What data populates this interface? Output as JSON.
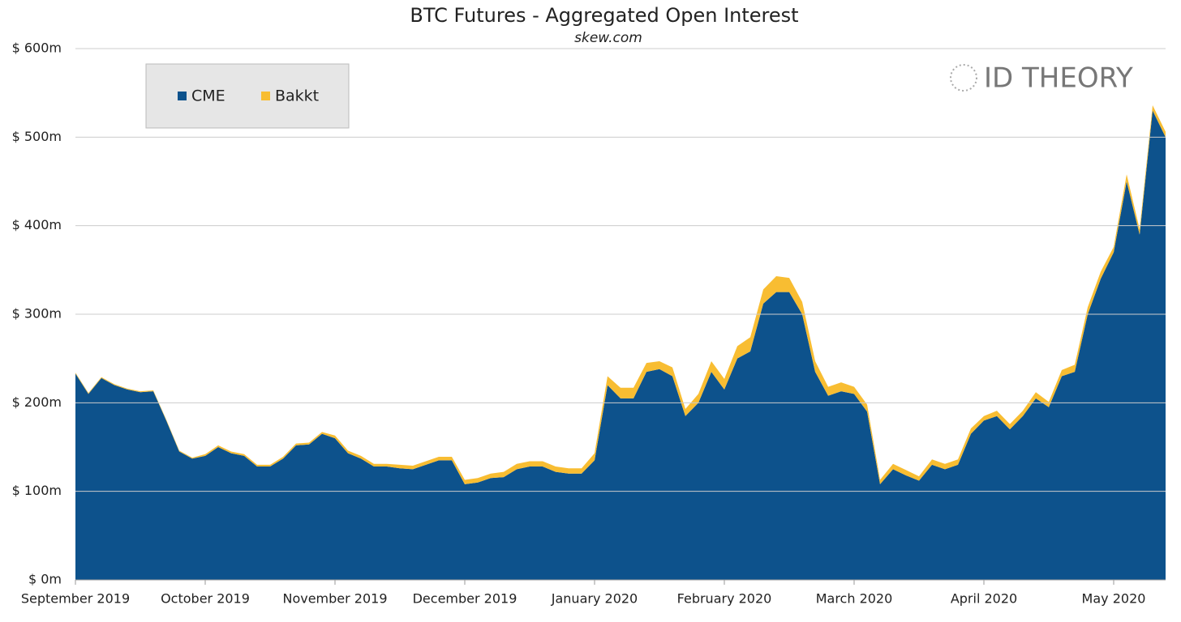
{
  "chart_data": {
    "type": "stacked-area",
    "title": "BTC Futures -  Aggregated Open Interest",
    "subtitle": "skew.com",
    "watermark": "ID THEORY",
    "categories": [
      "September 2019",
      null,
      null,
      null,
      null,
      null,
      null,
      null,
      null,
      null,
      "October 2019",
      null,
      null,
      null,
      null,
      null,
      null,
      null,
      null,
      null,
      "November 2019",
      null,
      null,
      null,
      null,
      null,
      null,
      null,
      null,
      null,
      "December 2019",
      null,
      null,
      null,
      null,
      null,
      null,
      null,
      null,
      null,
      "January 2020",
      null,
      null,
      null,
      null,
      null,
      null,
      null,
      null,
      null,
      "February 2020",
      null,
      null,
      null,
      null,
      null,
      null,
      null,
      null,
      null,
      "March 2020",
      null,
      null,
      null,
      null,
      null,
      null,
      null,
      null,
      null,
      "April 2020",
      null,
      null,
      null,
      null,
      null,
      null,
      null,
      null,
      null,
      "May 2020",
      null,
      null,
      null,
      null
    ],
    "series": [
      {
        "name": "CME",
        "color": "#0d528c",
        "values": [
          233,
          210,
          228,
          220,
          215,
          212,
          213,
          180,
          145,
          137,
          140,
          150,
          143,
          140,
          128,
          128,
          137,
          152,
          153,
          165,
          160,
          143,
          137,
          128,
          128,
          126,
          125,
          130,
          135,
          135,
          108,
          110,
          115,
          116,
          125,
          128,
          128,
          122,
          120,
          120,
          135,
          220,
          205,
          205,
          235,
          238,
          230,
          185,
          200,
          235,
          215,
          250,
          258,
          312,
          325,
          325,
          300,
          235,
          208,
          213,
          210,
          190,
          108,
          125,
          118,
          112,
          130,
          125,
          130,
          165,
          180,
          185,
          170,
          185,
          205,
          195,
          230,
          235,
          300,
          340,
          370,
          450,
          390,
          530,
          500
        ]
      },
      {
        "name": "Bakkt",
        "color": "#f8bd32",
        "values": [
          1,
          1,
          1,
          1,
          1,
          1,
          1,
          1,
          1,
          1,
          2,
          2,
          2,
          2,
          2,
          2,
          2,
          2,
          2,
          2,
          3,
          3,
          3,
          3,
          3,
          4,
          4,
          4,
          4,
          4,
          5,
          5,
          5,
          6,
          6,
          6,
          6,
          6,
          6,
          6,
          8,
          10,
          12,
          12,
          10,
          9,
          10,
          8,
          10,
          12,
          12,
          14,
          16,
          16,
          18,
          16,
          14,
          12,
          10,
          10,
          8,
          8,
          5,
          6,
          6,
          5,
          6,
          6,
          6,
          6,
          5,
          6,
          6,
          6,
          7,
          6,
          7,
          8,
          8,
          8,
          6,
          8,
          6,
          6,
          6
        ]
      }
    ],
    "ylim": [
      0,
      600
    ],
    "yticks": [
      {
        "value": 0,
        "label": "$ 0m"
      },
      {
        "value": 100,
        "label": "$ 100m"
      },
      {
        "value": 200,
        "label": "$ 200m"
      },
      {
        "value": 300,
        "label": "$ 300m"
      },
      {
        "value": 400,
        "label": "$ 400m"
      },
      {
        "value": 500,
        "label": "$ 500m"
      },
      {
        "value": 600,
        "label": "$ 600m"
      }
    ],
    "grid": true,
    "legend": "top-left"
  }
}
